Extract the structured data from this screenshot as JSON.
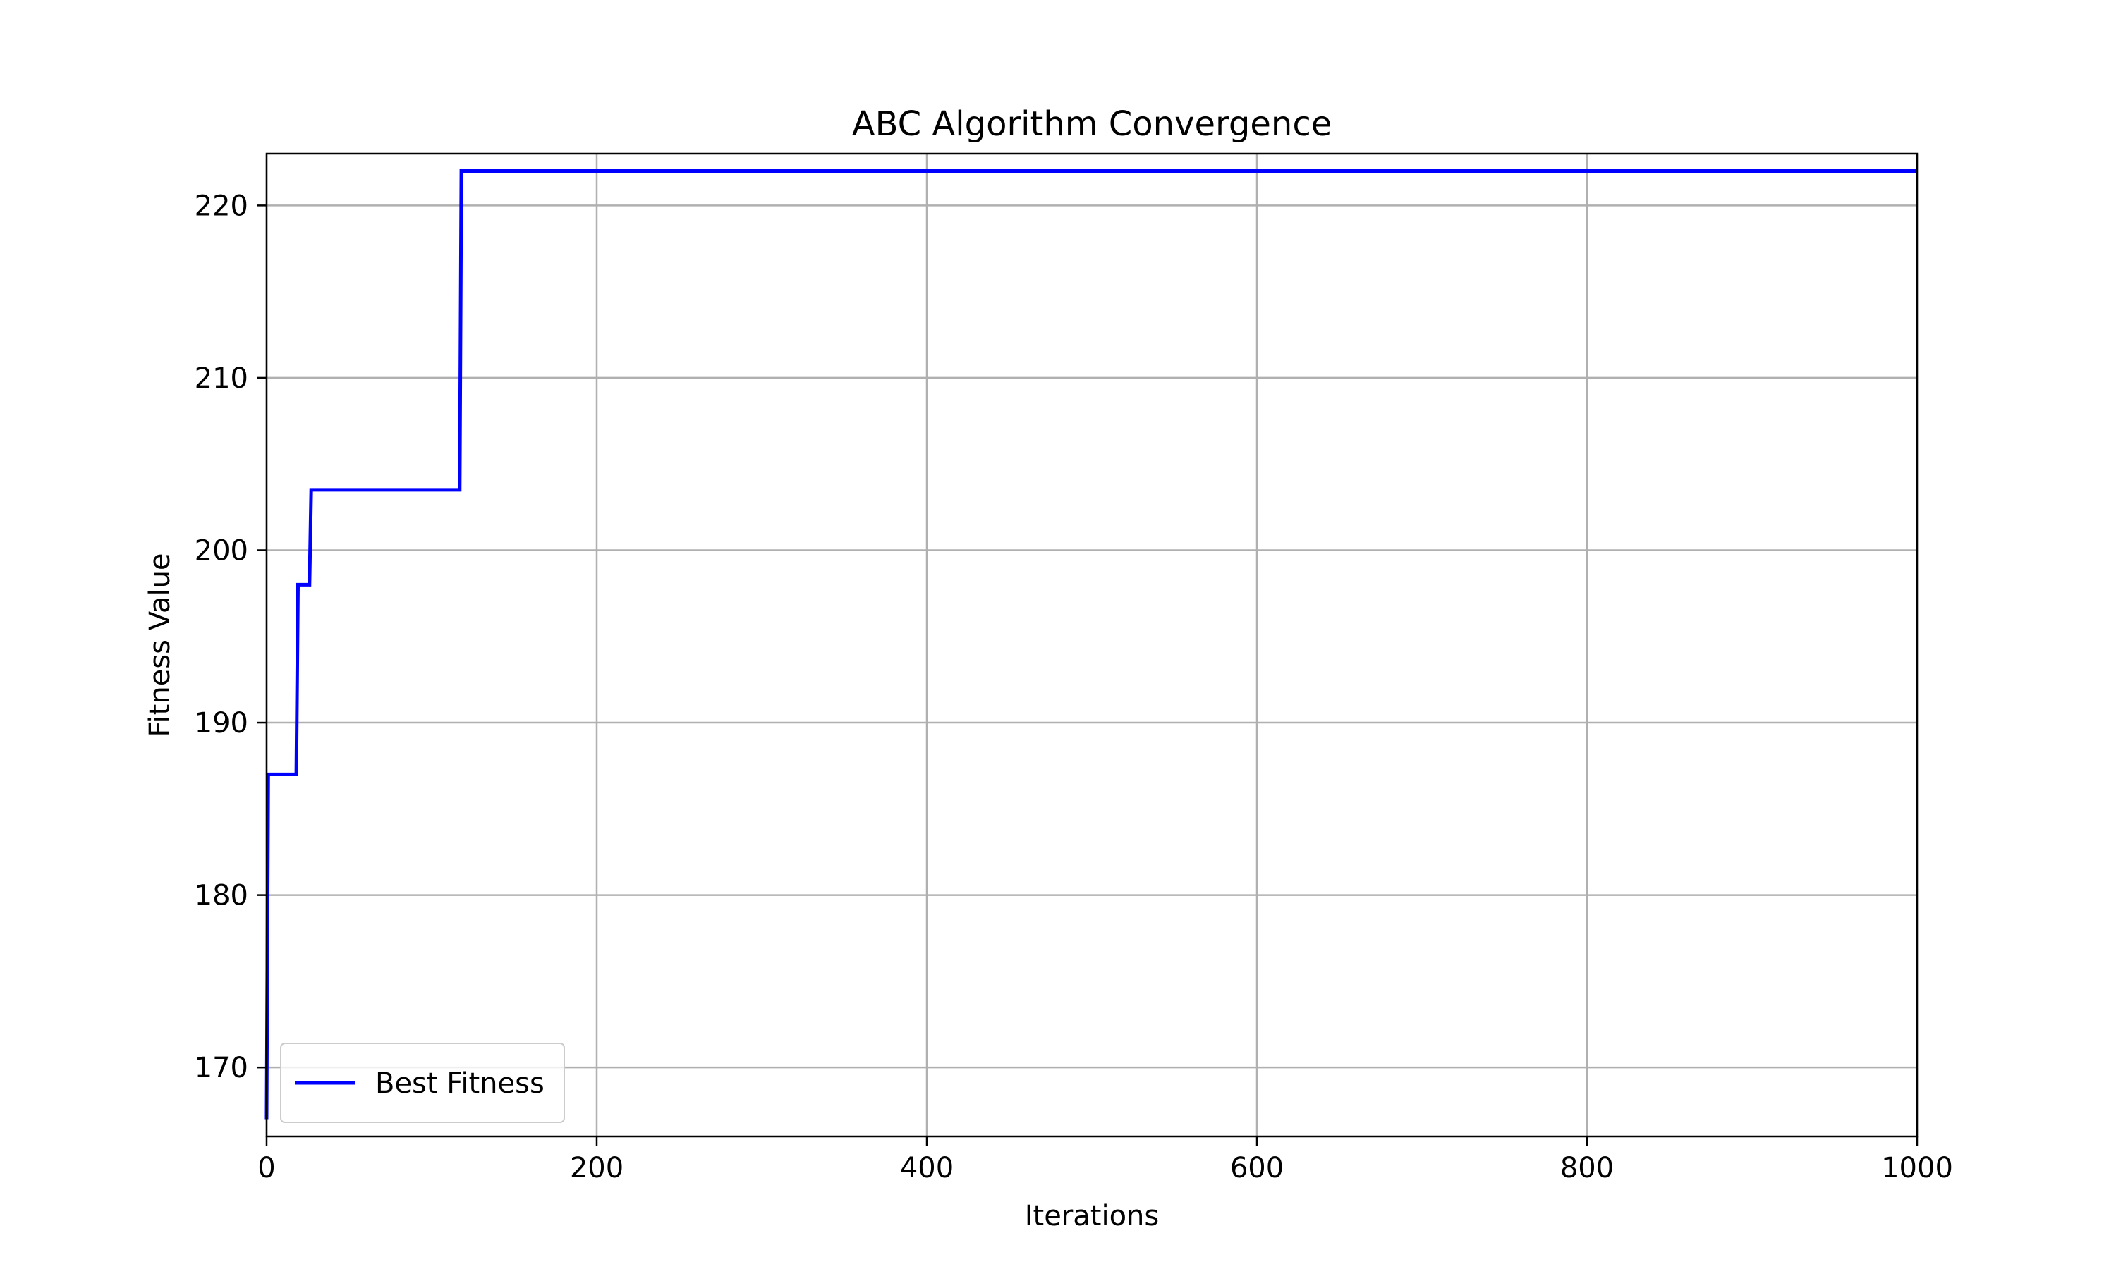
{
  "chart_data": {
    "type": "line",
    "title": "ABC Algorithm Convergence",
    "xlabel": "Iterations",
    "ylabel": "Fitness Value",
    "xlim": [
      0,
      1000
    ],
    "ylim": [
      166,
      223
    ],
    "xticks": [
      0,
      200,
      400,
      600,
      800,
      1000
    ],
    "yticks": [
      170,
      180,
      190,
      200,
      210,
      220
    ],
    "grid": true,
    "legend_position": "lower-left",
    "series": [
      {
        "name": "Best Fitness",
        "color": "#0000ff",
        "style": "step",
        "points": [
          [
            0,
            167
          ],
          [
            1,
            187
          ],
          [
            18,
            187
          ],
          [
            19,
            198
          ],
          [
            26,
            198
          ],
          [
            27,
            203.5
          ],
          [
            117,
            203.5
          ],
          [
            118,
            222
          ],
          [
            1000,
            222
          ]
        ]
      }
    ]
  }
}
